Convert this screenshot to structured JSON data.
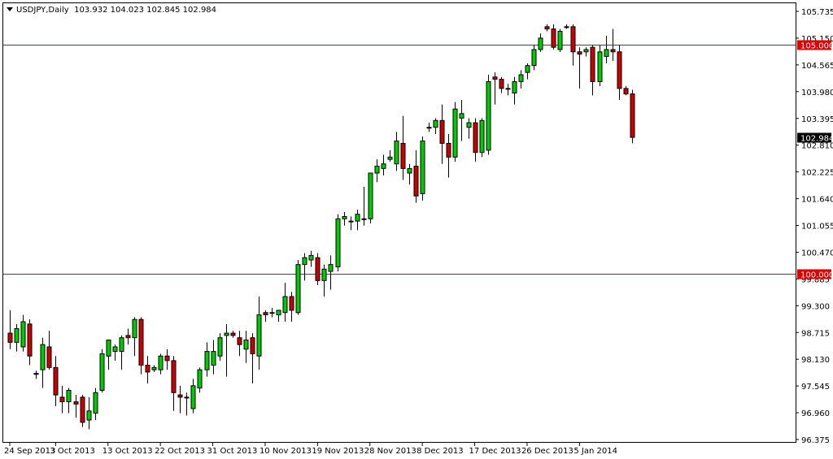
{
  "header": {
    "symbol": "USDJPY,Daily",
    "ohlc": "103.932 104.023 102.845 102.984"
  },
  "colors": {
    "bull": "#00cc00",
    "bear": "#cc0000",
    "outline": "#000000",
    "hline": "#dd0000",
    "label_bg": "#dd0000",
    "price_bg": "#000000"
  },
  "chart_data": {
    "type": "candlestick",
    "symbol": "USDJPY",
    "timeframe": "Daily",
    "ylim": [
      96.375,
      105.735
    ],
    "y_ticks": [
      "105.735",
      "105.150",
      "104.565",
      "103.980",
      "103.395",
      "102.810",
      "102.225",
      "101.640",
      "101.055",
      "100.470",
      "99.885",
      "99.300",
      "98.715",
      "98.130",
      "97.545",
      "96.960",
      "96.375"
    ],
    "x_labels": [
      {
        "index": 0,
        "label": "24 Sep 2013"
      },
      {
        "index": 7,
        "label": "3 Oct 2013"
      },
      {
        "index": 15,
        "label": "13 Oct 2013"
      },
      {
        "index": 23,
        "label": "22 Oct 2013"
      },
      {
        "index": 31,
        "label": "31 Oct 2013"
      },
      {
        "index": 39,
        "label": "10 Nov 2013"
      },
      {
        "index": 47,
        "label": "19 Nov 2013"
      },
      {
        "index": 55,
        "label": "28 Nov 2013"
      },
      {
        "index": 63,
        "label": "8 Dec 2013"
      },
      {
        "index": 71,
        "label": "17 Dec 2013"
      },
      {
        "index": 79,
        "label": "26 Dec 2013"
      },
      {
        "index": 87,
        "label": "5 Jan 2014"
      }
    ],
    "horizontal_lines": [
      {
        "value": 105.0,
        "label": "105.000"
      },
      {
        "value": 100.0,
        "label": "100.000"
      }
    ],
    "current_price": {
      "value": 102.984,
      "label": "102.984"
    },
    "candles": [
      [
        98.7,
        99.2,
        98.35,
        98.5
      ],
      [
        98.5,
        98.9,
        98.3,
        98.8
      ],
      [
        98.4,
        99.1,
        98.3,
        98.95
      ],
      [
        98.9,
        99.0,
        98.0,
        98.2
      ],
      [
        97.82,
        97.88,
        97.7,
        97.8
      ],
      [
        97.9,
        98.6,
        97.5,
        98.45
      ],
      [
        98.4,
        98.75,
        97.9,
        97.95
      ],
      [
        97.95,
        98.2,
        97.1,
        97.35
      ],
      [
        97.3,
        97.55,
        96.95,
        97.2
      ],
      [
        97.2,
        97.5,
        96.95,
        97.45
      ],
      [
        97.2,
        97.35,
        96.85,
        97.15
      ],
      [
        97.3,
        97.35,
        96.65,
        96.75
      ],
      [
        96.8,
        97.3,
        96.6,
        97.0
      ],
      [
        96.95,
        97.5,
        96.8,
        97.4
      ],
      [
        97.45,
        98.35,
        97.4,
        98.25
      ],
      [
        98.2,
        98.55,
        97.9,
        98.55
      ],
      [
        98.3,
        98.45,
        98.1,
        98.4
      ],
      [
        98.3,
        98.65,
        97.9,
        98.6
      ],
      [
        98.65,
        98.8,
        98.45,
        98.6
      ],
      [
        98.6,
        99.05,
        98.2,
        99.0
      ],
      [
        99.0,
        99.05,
        97.8,
        98.0
      ],
      [
        98.0,
        98.2,
        97.6,
        97.85
      ],
      [
        97.9,
        98.0,
        97.85,
        97.95
      ],
      [
        97.9,
        98.25,
        97.8,
        98.2
      ],
      [
        98.2,
        98.35,
        97.9,
        98.1
      ],
      [
        98.1,
        98.2,
        97.0,
        97.4
      ],
      [
        97.35,
        97.55,
        96.95,
        97.3
      ],
      [
        97.3,
        97.4,
        96.9,
        97.3
      ],
      [
        97.05,
        97.7,
        96.95,
        97.55
      ],
      [
        97.5,
        97.95,
        97.4,
        97.9
      ],
      [
        97.9,
        98.5,
        97.75,
        98.3
      ],
      [
        98.0,
        98.55,
        97.8,
        98.3
      ],
      [
        98.2,
        98.7,
        98.1,
        98.6
      ],
      [
        98.65,
        98.9,
        97.75,
        98.7
      ],
      [
        98.7,
        98.75,
        98.6,
        98.65
      ],
      [
        98.6,
        98.75,
        98.2,
        98.45
      ],
      [
        98.35,
        98.75,
        98.05,
        98.55
      ],
      [
        98.6,
        98.7,
        97.6,
        98.25
      ],
      [
        98.2,
        99.5,
        97.9,
        99.1
      ],
      [
        99.15,
        99.2,
        98.95,
        99.1
      ],
      [
        99.15,
        99.25,
        99.05,
        99.15
      ],
      [
        99.1,
        99.2,
        98.95,
        99.2
      ],
      [
        99.15,
        99.8,
        98.95,
        99.5
      ],
      [
        99.5,
        99.6,
        98.95,
        99.2
      ],
      [
        99.15,
        100.3,
        99.1,
        100.2
      ],
      [
        100.2,
        100.45,
        99.85,
        100.35
      ],
      [
        100.3,
        100.5,
        100.15,
        100.4
      ],
      [
        100.35,
        100.45,
        99.75,
        99.85
      ],
      [
        99.85,
        100.2,
        99.5,
        100.1
      ],
      [
        100.05,
        100.4,
        99.65,
        100.2
      ],
      [
        100.15,
        101.3,
        100.05,
        101.2
      ],
      [
        101.2,
        101.35,
        101.05,
        101.25
      ],
      [
        101.15,
        101.25,
        100.95,
        101.15
      ],
      [
        101.15,
        101.4,
        100.95,
        101.3
      ],
      [
        101.2,
        101.9,
        101.05,
        101.2
      ],
      [
        101.2,
        102.2,
        101.1,
        102.2
      ],
      [
        102.2,
        102.5,
        102.0,
        102.35
      ],
      [
        102.3,
        102.6,
        102.15,
        102.4
      ],
      [
        102.5,
        102.7,
        102.45,
        102.55
      ],
      [
        102.4,
        103.1,
        102.25,
        102.9
      ],
      [
        102.85,
        103.45,
        102.05,
        102.3
      ],
      [
        102.2,
        102.4,
        101.95,
        102.3
      ],
      [
        102.35,
        102.7,
        101.55,
        101.7
      ],
      [
        101.75,
        103.0,
        101.6,
        102.9
      ],
      [
        103.2,
        103.3,
        103.1,
        103.2
      ],
      [
        103.2,
        103.4,
        103.05,
        103.35
      ],
      [
        103.35,
        103.7,
        102.4,
        102.85
      ],
      [
        102.85,
        103.05,
        102.1,
        102.55
      ],
      [
        102.55,
        103.75,
        102.45,
        103.6
      ],
      [
        103.4,
        103.8,
        102.9,
        103.5
      ],
      [
        103.2,
        103.4,
        102.95,
        103.3
      ],
      [
        103.3,
        103.4,
        102.45,
        102.65
      ],
      [
        102.65,
        103.4,
        102.55,
        103.35
      ],
      [
        102.7,
        104.35,
        102.6,
        104.2
      ],
      [
        104.3,
        104.4,
        103.7,
        104.25
      ],
      [
        104.25,
        104.3,
        103.95,
        104.05
      ],
      [
        104.05,
        104.15,
        103.9,
        104.05
      ],
      [
        103.95,
        104.3,
        103.7,
        104.2
      ],
      [
        104.2,
        104.45,
        104.05,
        104.35
      ],
      [
        104.4,
        104.6,
        104.25,
        104.55
      ],
      [
        104.55,
        105.0,
        104.45,
        104.9
      ],
      [
        104.9,
        105.25,
        104.85,
        105.15
      ],
      [
        105.4,
        105.45,
        105.3,
        105.35
      ],
      [
        105.35,
        105.45,
        104.9,
        104.95
      ],
      [
        104.9,
        105.35,
        104.85,
        105.3
      ],
      [
        105.4,
        105.45,
        105.35,
        105.4
      ],
      [
        105.4,
        105.45,
        104.55,
        104.85
      ],
      [
        104.85,
        104.95,
        104.05,
        104.8
      ],
      [
        104.85,
        104.95,
        104.75,
        104.9
      ],
      [
        104.95,
        105.0,
        103.9,
        104.2
      ],
      [
        104.2,
        105.0,
        104.1,
        104.85
      ],
      [
        104.75,
        105.2,
        104.6,
        104.9
      ],
      [
        104.9,
        105.35,
        104.65,
        104.85
      ],
      [
        104.85,
        105.0,
        103.8,
        104.05
      ],
      [
        104.05,
        104.1,
        103.9,
        103.93
      ],
      [
        103.93,
        104.02,
        102.85,
        102.98
      ]
    ]
  }
}
